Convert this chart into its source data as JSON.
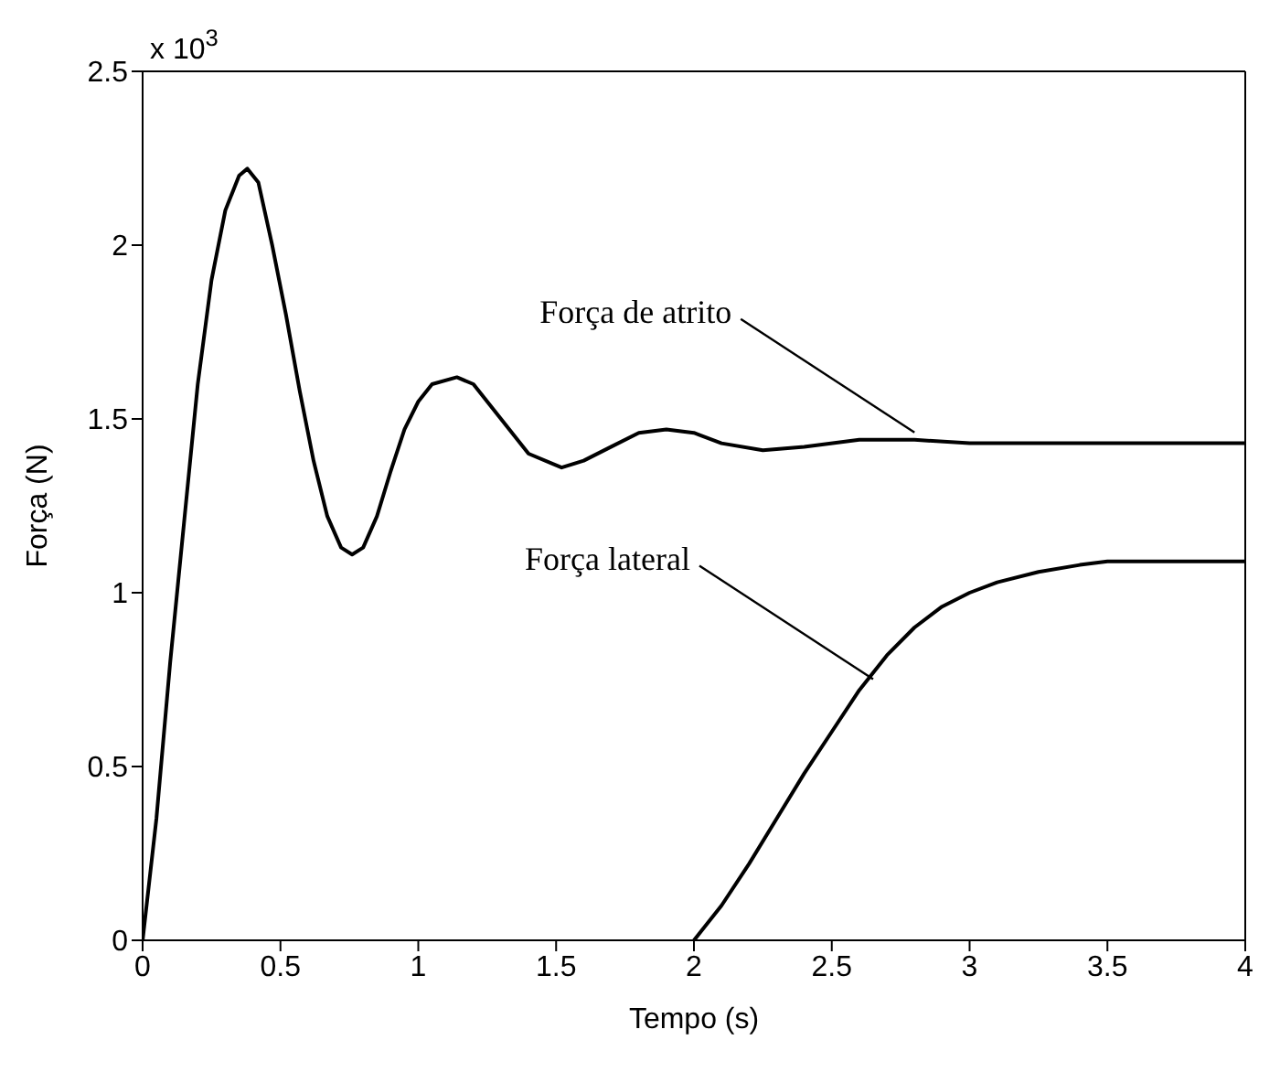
{
  "chart_data": {
    "type": "line",
    "xlabel": "Tempo (s)",
    "ylabel": "Força (N)",
    "xlim": [
      0,
      4
    ],
    "xticks": [
      0,
      0.5,
      1,
      1.5,
      2,
      2.5,
      3,
      3.5,
      4
    ],
    "ylim": [
      0,
      2.5
    ],
    "yticks": [
      0,
      0.5,
      1,
      1.5,
      2,
      2.5
    ],
    "legend": false,
    "marker": "none",
    "line_style": "solid",
    "annotations": [
      "x 10$^{3}$",
      {
        "text": "Força de atrito",
        "x": 2.8,
        "y": 1.44
      },
      {
        "text": "Força lateral",
        "x": 2.65,
        "y": 0.73
      }
    ],
    "series": [
      {
        "color": "#000000",
        "x": [
          0,
          0.05,
          0.1,
          0.15,
          0.2,
          0.25,
          0.3,
          0.35,
          0.38,
          0.42,
          0.47,
          0.52,
          0.57,
          0.62,
          0.67,
          0.72,
          0.76,
          0.8,
          0.85,
          0.9,
          0.95,
          1.0,
          1.05,
          1.14,
          1.2,
          1.3,
          1.4,
          1.52,
          1.6,
          1.7,
          1.8,
          1.9,
          2.0,
          2.1,
          2.25,
          2.4,
          2.6,
          2.8,
          3.0,
          3.5,
          4
        ],
        "values": [
          0,
          0.35,
          0.8,
          1.2,
          1.6,
          1.9,
          2.1,
          2.2,
          2.22,
          2.18,
          2.0,
          1.8,
          1.58,
          1.38,
          1.22,
          1.13,
          1.11,
          1.13,
          1.22,
          1.35,
          1.47,
          1.55,
          1.6,
          1.62,
          1.6,
          1.5,
          1.4,
          1.36,
          1.38,
          1.42,
          1.46,
          1.47,
          1.46,
          1.43,
          1.41,
          1.42,
          1.44,
          1.44,
          1.43,
          1.43,
          1.43
        ]
      },
      {
        "color": "#000000",
        "x": [
          2,
          2.1,
          2.2,
          2.3,
          2.4,
          2.5,
          2.6,
          2.7,
          2.8,
          2.9,
          3.0,
          3.1,
          3.25,
          3.4,
          3.5,
          4
        ],
        "values": [
          0,
          0.1,
          0.22,
          0.35,
          0.48,
          0.6,
          0.72,
          0.82,
          0.9,
          0.96,
          1.0,
          1.03,
          1.06,
          1.08,
          1.09,
          1.09
        ]
      }
    ]
  }
}
